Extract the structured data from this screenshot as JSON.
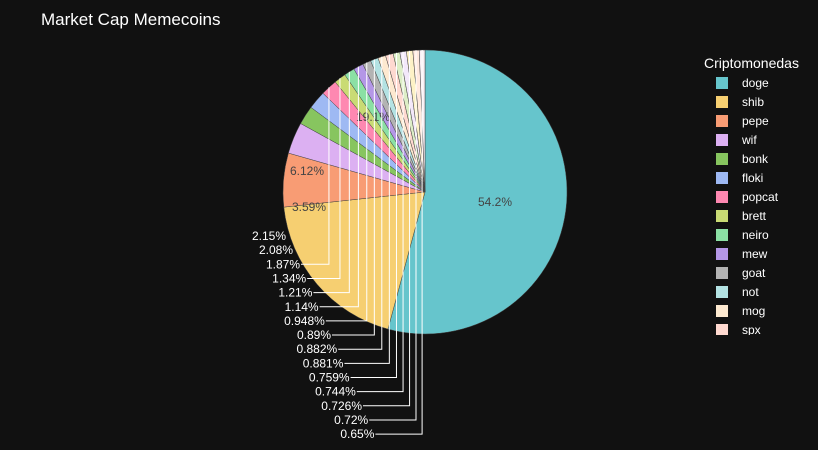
{
  "chart_data": {
    "type": "pie",
    "title": "Market Cap Memecoins",
    "legend_title": "Criptomonedas",
    "legend_position": "right",
    "slices": [
      {
        "label": "doge",
        "percent": 54.2,
        "color": "#66C5CC"
      },
      {
        "label": "shib",
        "percent": 19.1,
        "color": "#F6CF71"
      },
      {
        "label": "pepe",
        "percent": 6.12,
        "color": "#F89C74"
      },
      {
        "label": "wif",
        "percent": 3.59,
        "color": "#DCB0F2"
      },
      {
        "label": "bonk",
        "percent": 2.15,
        "color": "#87C55F"
      },
      {
        "label": "floki",
        "percent": 2.08,
        "color": "#9EB9F3"
      },
      {
        "label": "popcat",
        "percent": 1.87,
        "color": "#FE88B1"
      },
      {
        "label": "brett",
        "percent": 1.34,
        "color": "#C9DB74"
      },
      {
        "label": "neiro",
        "percent": 1.21,
        "color": "#8BE0A4"
      },
      {
        "label": "mew",
        "percent": 1.14,
        "color": "#B497E7"
      },
      {
        "label": "goat",
        "percent": 0.948,
        "color": "#B3B3B3"
      },
      {
        "label": "not",
        "percent": 0.89,
        "color": "#B3E2E3"
      },
      {
        "label": "mog",
        "percent": 0.882,
        "color": "#FDE9D0"
      },
      {
        "label": "spx",
        "percent": 0.881,
        "color": "#FFD9D0"
      },
      {
        "label": "",
        "percent": 0.759,
        "color": "#DDEEC6"
      },
      {
        "label": "",
        "percent": 0.744,
        "color": "#F3E8FA"
      },
      {
        "label": "",
        "percent": 0.726,
        "color": "#FDF2C6"
      },
      {
        "label": "",
        "percent": 0.72,
        "color": "#FFE9DE"
      },
      {
        "label": "",
        "percent": 0.65,
        "color": "#F9EFF4"
      }
    ],
    "visible_legend_count": 14
  }
}
